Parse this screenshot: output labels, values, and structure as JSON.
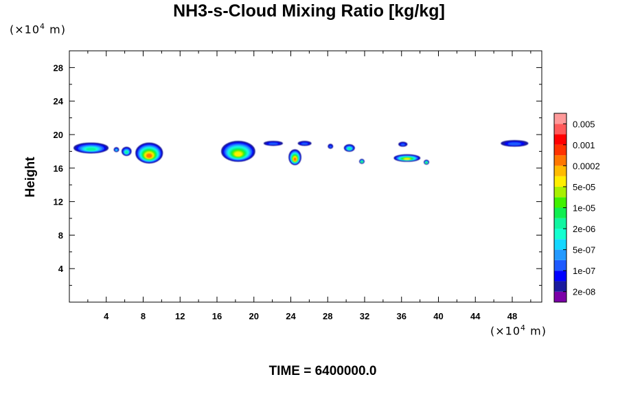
{
  "chart_data": {
    "type": "heatmap",
    "title": "NH3-s-Cloud Mixing Ratio [kg/kg]",
    "ylabel": "Height",
    "x_unit": {
      "prefix": "(×10",
      "exp": "4",
      "suffix": " m)"
    },
    "y_unit": {
      "prefix": "(×10",
      "exp": "4",
      "suffix": " m)"
    },
    "xlim": [
      0,
      51.2
    ],
    "ylim": [
      0,
      30
    ],
    "xticks": [
      4,
      8,
      12,
      16,
      20,
      24,
      28,
      32,
      36,
      40,
      44,
      48
    ],
    "yticks": [
      4,
      8,
      12,
      16,
      20,
      24,
      28
    ],
    "time_label": "TIME = 6400000.0",
    "colorbar": {
      "colors": [
        "#7b00a8",
        "#1a1a9e",
        "#0000ff",
        "#1e5aff",
        "#2399ff",
        "#14d7ff",
        "#14ffd0",
        "#10f5a0",
        "#10ee50",
        "#40f000",
        "#a8f000",
        "#ffee00",
        "#ffbb00",
        "#ff7700",
        "#ff3300",
        "#ff0000",
        "#ff5a5a",
        "#ff9a9a"
      ],
      "tick_labels": [
        "2e-08",
        "1e-07",
        "5e-07",
        "2e-06",
        "1e-05",
        "5e-05",
        "0.0002",
        "0.001",
        "0.005"
      ]
    },
    "cloud_patches": [
      {
        "x": [
          0.5,
          4.2
        ],
        "y": [
          17.8,
          19.0
        ],
        "peak": "2e-06"
      },
      {
        "x": 5.1,
        "y": 18.2,
        "peak": "5e-07"
      },
      {
        "x": [
          5.7,
          6.7
        ],
        "y": [
          17.5,
          18.5
        ],
        "peak": "2e-06"
      },
      {
        "x": [
          7.2,
          10.1
        ],
        "y": [
          16.6,
          19.0
        ],
        "peak": "0.0002"
      },
      {
        "x": [
          16.5,
          20.1
        ],
        "y": [
          16.8,
          19.2
        ],
        "peak": "5e-05"
      },
      {
        "x": [
          21.1,
          23.1
        ],
        "y": [
          18.7,
          19.2
        ],
        "peak": "1e-07"
      },
      {
        "x": [
          23.8,
          25.1
        ],
        "y": [
          16.4,
          18.2
        ],
        "peak": "0.0002"
      },
      {
        "x": [
          24.8,
          26.2
        ],
        "y": [
          18.7,
          19.2
        ],
        "peak": "1e-07"
      },
      {
        "x": 28.3,
        "y": 18.6,
        "peak": "1e-07"
      },
      {
        "x": [
          29.8,
          30.9
        ],
        "y": [
          18.0,
          18.8
        ],
        "peak": "2e-06"
      },
      {
        "x": 31.7,
        "y": 16.8,
        "peak": "1e-05"
      },
      {
        "x": [
          35.2,
          38.0
        ],
        "y": [
          16.8,
          17.6
        ],
        "peak": "5e-05"
      },
      {
        "x": [
          35.7,
          36.6
        ],
        "y": [
          18.6,
          19.1
        ],
        "peak": "1e-07"
      },
      {
        "x": 38.7,
        "y": 16.7,
        "peak": "1e-05"
      },
      {
        "x": [
          46.8,
          49.7
        ],
        "y": [
          18.6,
          19.3
        ],
        "peak": "1e-07"
      }
    ]
  }
}
